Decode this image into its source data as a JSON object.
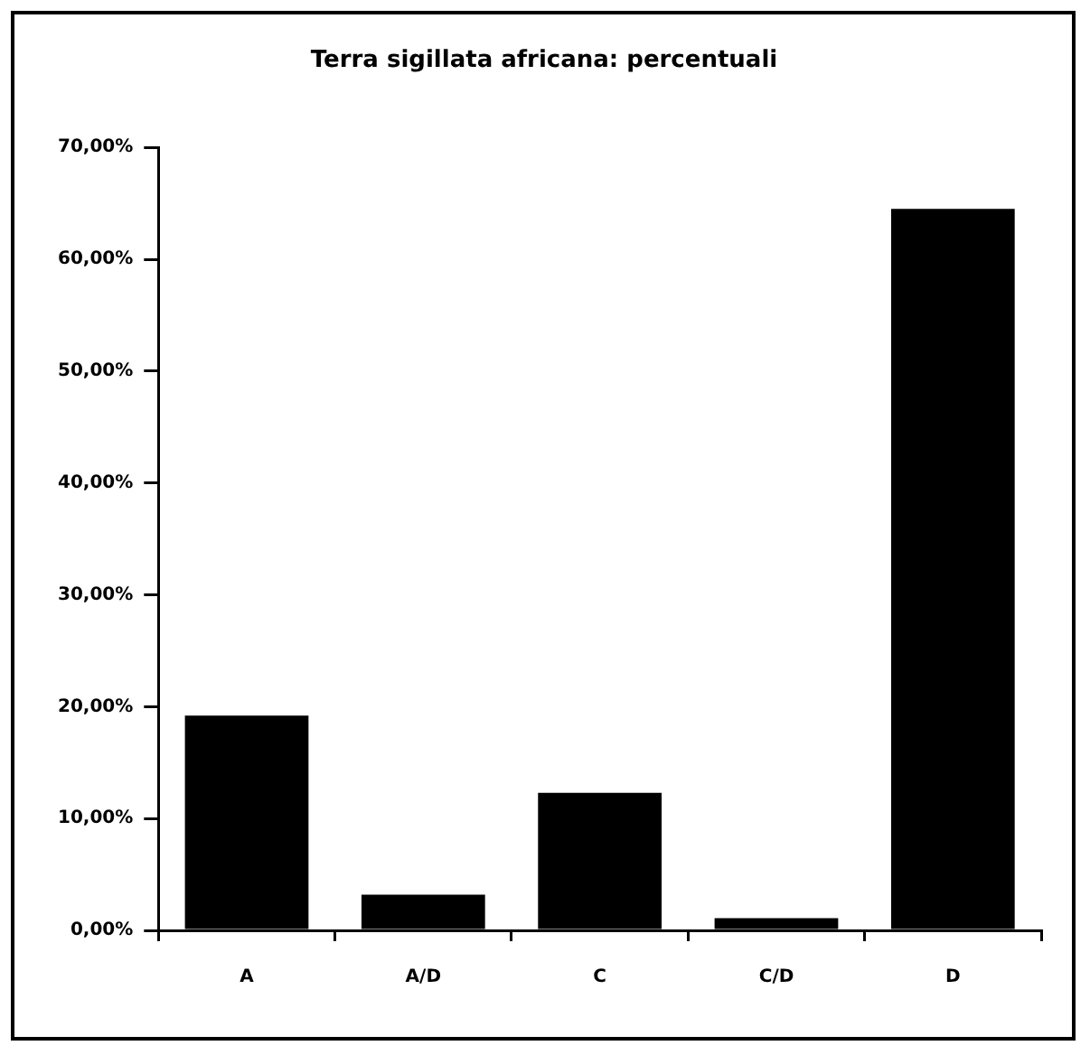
{
  "chart_data": {
    "type": "bar",
    "title": "Terra sigillata africana: percentuali",
    "categories": [
      "A",
      "A/D",
      "C",
      "C/D",
      "D"
    ],
    "values": [
      19.2,
      3.2,
      12.3,
      1.1,
      64.5
    ],
    "color": "#000000",
    "ylim": [
      0,
      70
    ],
    "yticks": [
      {
        "value": 0,
        "label": "0,00%"
      },
      {
        "value": 10,
        "label": "10,00%"
      },
      {
        "value": 20,
        "label": "20,00%"
      },
      {
        "value": 30,
        "label": "30,00%"
      },
      {
        "value": 40,
        "label": "40,00%"
      },
      {
        "value": 50,
        "label": "50,00%"
      },
      {
        "value": 60,
        "label": "60,00%"
      },
      {
        "value": 70,
        "label": "70,00%"
      }
    ],
    "grid": false,
    "legend": false
  }
}
